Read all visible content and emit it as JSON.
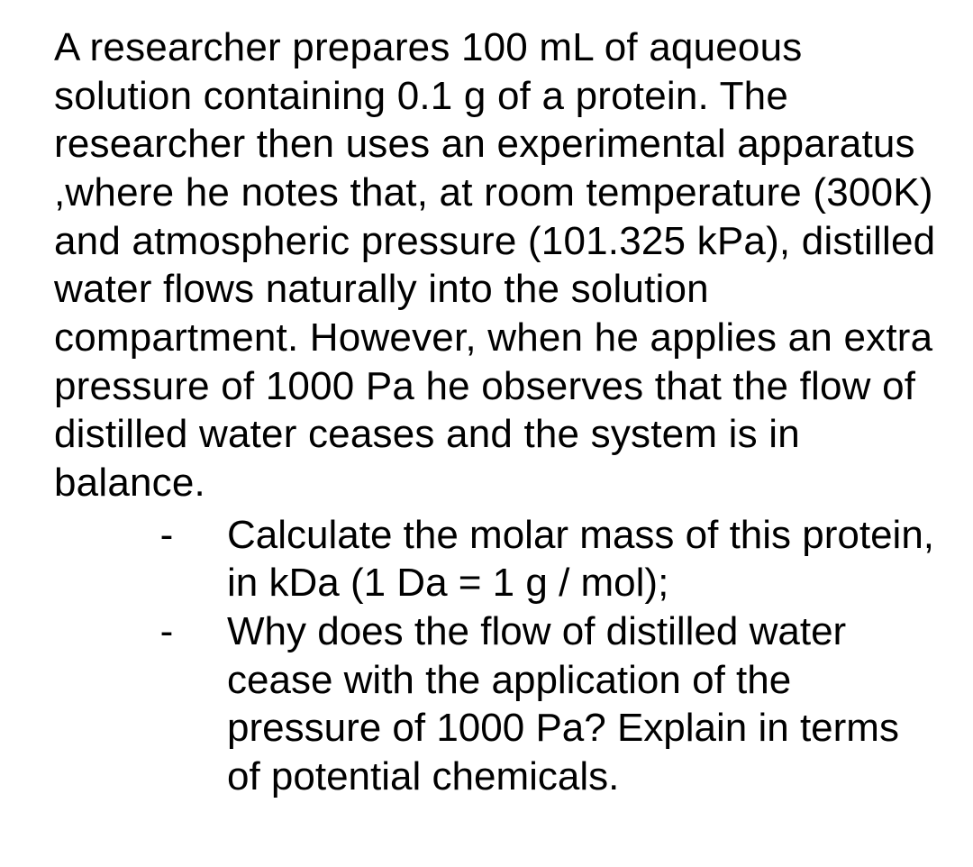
{
  "intro": "A researcher prepares 100 mL of aqueous solution containing 0.1 g of a protein. The researcher then uses an experimental apparatus ,where he notes that, at room temperature (300K) and atmospheric pressure (101.325 kPa), distilled water flows naturally into the solution compartment. However, when he applies an extra pressure of 1000 Pa he observes that the flow of distilled water ceases and the system is in balance.",
  "bullets": {
    "dash": "-",
    "items": [
      "Calculate the molar mass of this protein, in kDa (1 Da = 1 g / mol);",
      "Why does the flow of distilled water cease with the application of the pressure of 1000 Pa? Explain in terms of potential chemicals."
    ]
  },
  "style": {
    "font_family": "Arial, Helvetica, sans-serif",
    "font_size_pt": 33,
    "text_color": "#000000",
    "background_color": "#ffffff",
    "line_height": 1.22
  }
}
